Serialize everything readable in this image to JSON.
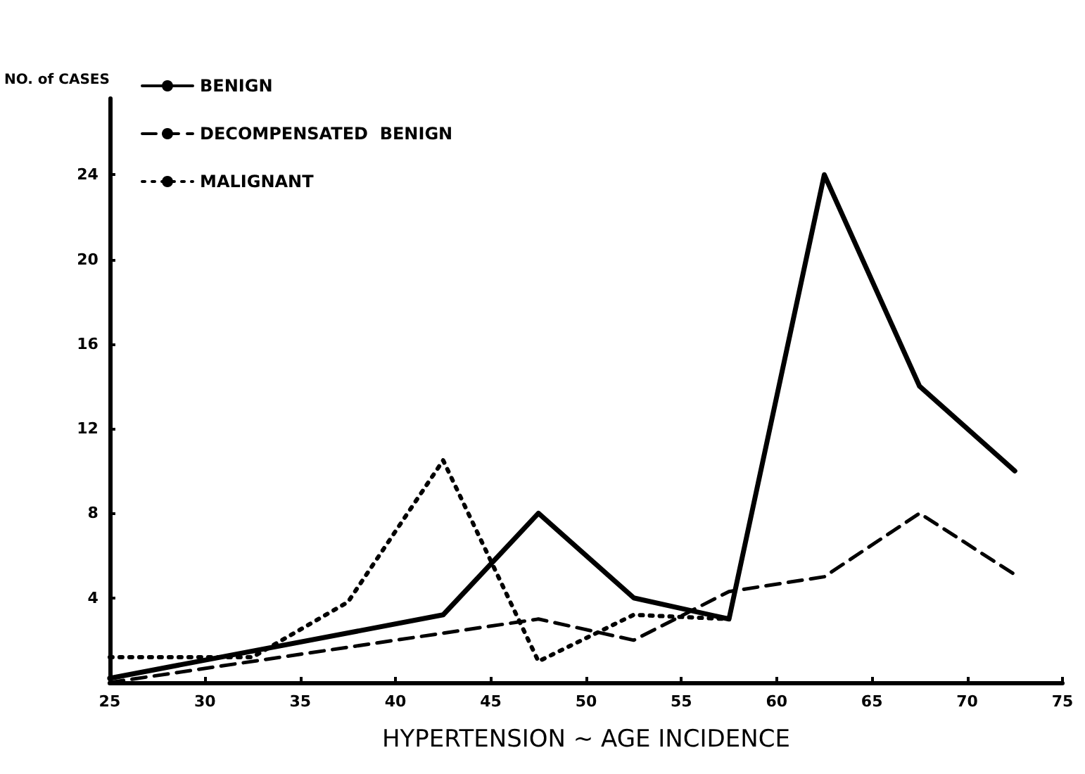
{
  "chart_data": {
    "type": "line",
    "xlabel": "HYPERTENSION ~ AGE INCIDENCE",
    "ylabel": "NO. of CASES",
    "series": [
      {
        "name": "BENIGN",
        "color": "#000000",
        "line_style": "solid",
        "x": [
          25,
          42.5,
          47.5,
          52.5,
          57.5,
          62.5,
          67.5,
          72.5
        ],
        "values": [
          0.2,
          3.2,
          8,
          4,
          3,
          24,
          14,
          10
        ]
      },
      {
        "name": "DECOMPENSATED  BENIGN",
        "color": "#000000",
        "line_style": "dashed",
        "x": [
          25,
          47.5,
          52.5,
          57.5,
          62.5,
          67.5,
          72.5
        ],
        "values": [
          0,
          3,
          2,
          4.3,
          5,
          8,
          5.1
        ]
      },
      {
        "name": "MALIGNANT",
        "color": "#000000",
        "line_style": "dotted",
        "x": [
          25,
          32.5,
          37.5,
          42.5,
          47.5,
          52.5,
          57.5
        ],
        "values": [
          1.2,
          1.2,
          3.8,
          10.5,
          1,
          3.2,
          3
        ]
      }
    ],
    "xlim": [
      25,
      75
    ],
    "xticks": [
      25,
      30,
      35,
      40,
      45,
      50,
      55,
      60,
      65,
      70,
      75
    ],
    "ylim": [
      0,
      27.6
    ],
    "yticks": [
      {
        "value": 0,
        "label": null
      },
      4,
      8,
      12,
      16,
      20,
      24
    ],
    "grid": false,
    "legend": "top left",
    "marker": "none"
  }
}
